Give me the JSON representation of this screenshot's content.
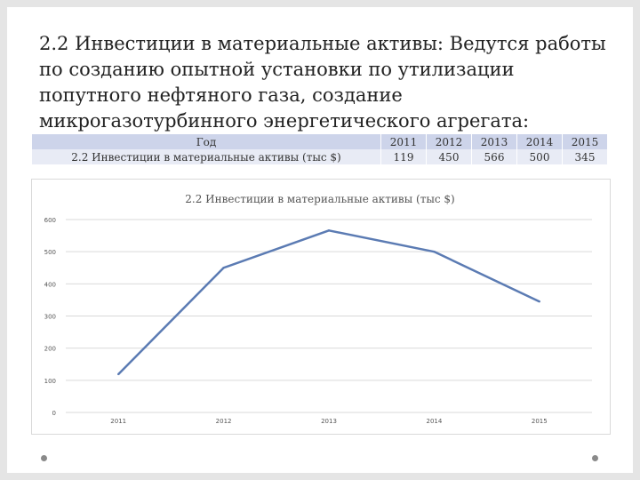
{
  "heading": "2.2 Инвестиции в материальные активы: Ведутся работы по созданию опытной установки по утилизации попутного нефтяного газа, создание микрогазотурбинного энергетического агрегата:",
  "table": {
    "rows": [
      {
        "label": "Год",
        "values": [
          "2011",
          "2012",
          "2013",
          "2014",
          "2015"
        ]
      },
      {
        "label": "2.2 Инвестиции в материальные активы (тыс $)",
        "values": [
          "119",
          "450",
          "566",
          "500",
          "345"
        ]
      }
    ]
  },
  "chart_data": {
    "type": "line",
    "title": "2.2 Инвестиции в материальные активы (тыс $)",
    "categories": [
      "2011",
      "2012",
      "2013",
      "2014",
      "2015"
    ],
    "values": [
      119,
      450,
      566,
      500,
      345
    ],
    "yticks": [
      "0",
      "100",
      "200",
      "300",
      "400",
      "500",
      "600"
    ],
    "ylim": [
      0,
      600
    ],
    "grid": true,
    "line_color": "#5b7bb3",
    "grid_color": "#d9d9d9"
  }
}
